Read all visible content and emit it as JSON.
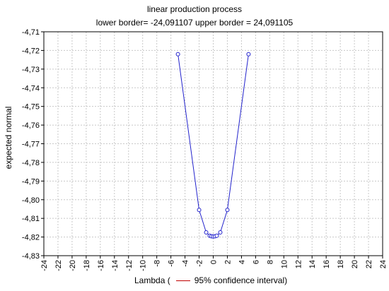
{
  "chart_data": {
    "type": "line",
    "title": "linear production process",
    "subtitle": "lower border= -24,091107 upper border = 24,091105",
    "xlabel": "Lambda  (",
    "legend_text": "95% confidence interval)",
    "ylabel": "expected normal",
    "xlim": [
      -24,
      24
    ],
    "ylim": [
      -4.83,
      -4.71
    ],
    "x_ticks": [
      -24,
      -22,
      -20,
      -18,
      -16,
      -14,
      -12,
      -10,
      -8,
      -6,
      -4,
      -2,
      0,
      2,
      4,
      6,
      8,
      10,
      12,
      14,
      16,
      18,
      20,
      22,
      24
    ],
    "y_ticks": [
      -4.71,
      -4.72,
      -4.73,
      -4.74,
      -4.75,
      -4.76,
      -4.77,
      -4.78,
      -4.79,
      -4.8,
      -4.81,
      -4.82,
      -4.83
    ],
    "decimal_separator": ",",
    "grid": true,
    "series_color": "#2222cc",
    "confidence_color": "#c00000",
    "series": [
      {
        "x": [
          -5,
          -2,
          -1,
          -0.5,
          -0.25,
          0,
          0.25,
          0.5,
          1,
          2,
          5
        ],
        "y": [
          -4.722,
          -4.8055,
          -4.8175,
          -4.8193,
          -4.8196,
          -4.8197,
          -4.8196,
          -4.8193,
          -4.8175,
          -4.8055,
          -4.722
        ]
      }
    ]
  }
}
